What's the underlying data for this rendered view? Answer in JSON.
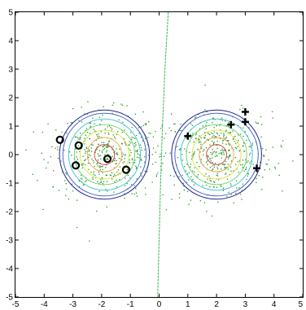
{
  "chart_data": {
    "type": "scatter",
    "xlim": [
      -5,
      5
    ],
    "ylim": [
      -5,
      5
    ],
    "x_ticks": [
      -5,
      -4,
      -3,
      -2,
      -1,
      0,
      1,
      2,
      3,
      4,
      5
    ],
    "y_ticks": [
      -5,
      -4,
      -3,
      -2,
      -1,
      0,
      1,
      2,
      3,
      4,
      5
    ],
    "x_tick_labels": [
      "-5",
      "-4",
      "-3",
      "-2",
      "-1",
      "0",
      "1",
      "2",
      "3",
      "4",
      "5"
    ],
    "y_tick_labels": [
      "-5",
      "-4",
      "-3",
      "-2",
      "-1",
      "0",
      "1",
      "2",
      "3",
      "4",
      "5"
    ],
    "grid": false,
    "title": "",
    "xlabel": "",
    "ylabel": "",
    "series": [
      {
        "marker": "circle",
        "color": "#000000",
        "points": [
          [
            -3.45,
            0.52
          ],
          [
            -2.8,
            0.32
          ],
          [
            -2.9,
            -0.38
          ],
          [
            -1.8,
            -0.15
          ],
          [
            -1.15,
            -0.53
          ]
        ]
      },
      {
        "marker": "plus",
        "color": "#000000",
        "points": [
          [
            1.0,
            0.65
          ],
          [
            2.5,
            1.05
          ],
          [
            3.0,
            1.5
          ],
          [
            3.0,
            1.15
          ],
          [
            3.4,
            -0.48
          ]
        ]
      }
    ],
    "contour_centers": [
      [
        -1.9,
        0.0
      ],
      [
        2.0,
        0.0
      ]
    ],
    "contour_levels_radius": [
      0.35,
      0.6,
      0.85,
      1.05,
      1.25,
      1.45
    ],
    "contour_colors": [
      "#dd3333",
      "#f2a13a",
      "#e2e23a",
      "#6ad06a",
      "#37c2d0",
      "#3355cc",
      "#222288"
    ],
    "boundary_line": {
      "color": "#33bb55",
      "points": [
        [
          0.32,
          5.0
        ],
        [
          0.2,
          3.0
        ],
        [
          0.12,
          1.0
        ],
        [
          0.05,
          -1.0
        ],
        [
          0.0,
          -3.0
        ],
        [
          -0.05,
          -5.0
        ]
      ]
    },
    "noise_color": "#229922",
    "noise_point_count": 900
  }
}
